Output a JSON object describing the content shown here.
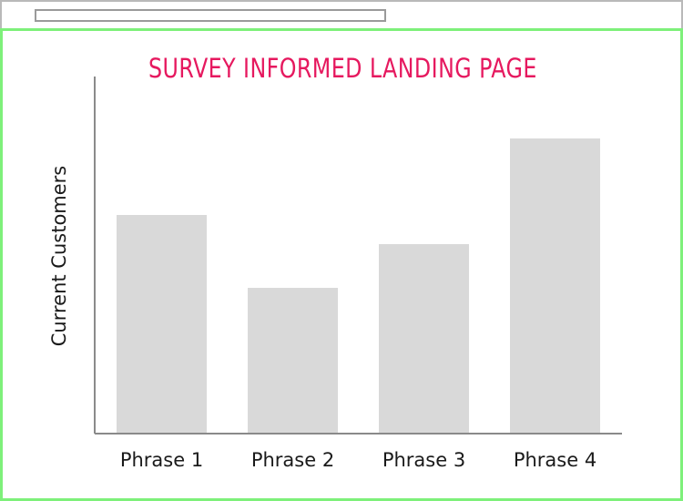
{
  "chart_data": {
    "type": "bar",
    "title": "SURVEY INFORMED LANDING PAGE",
    "ylabel": "Current Customers",
    "xlabel": "",
    "categories": [
      "Phrase 1",
      "Phrase 2",
      "Phrase 3",
      "Phrase 4"
    ],
    "values": [
      60,
      40,
      52,
      81
    ],
    "ylim": [
      0,
      98
    ],
    "grid": false,
    "colors": {
      "title": "#e6195f",
      "bars": "#d9d9d9",
      "axes": "#8a8a8a",
      "frame": "#7ef07a"
    }
  }
}
